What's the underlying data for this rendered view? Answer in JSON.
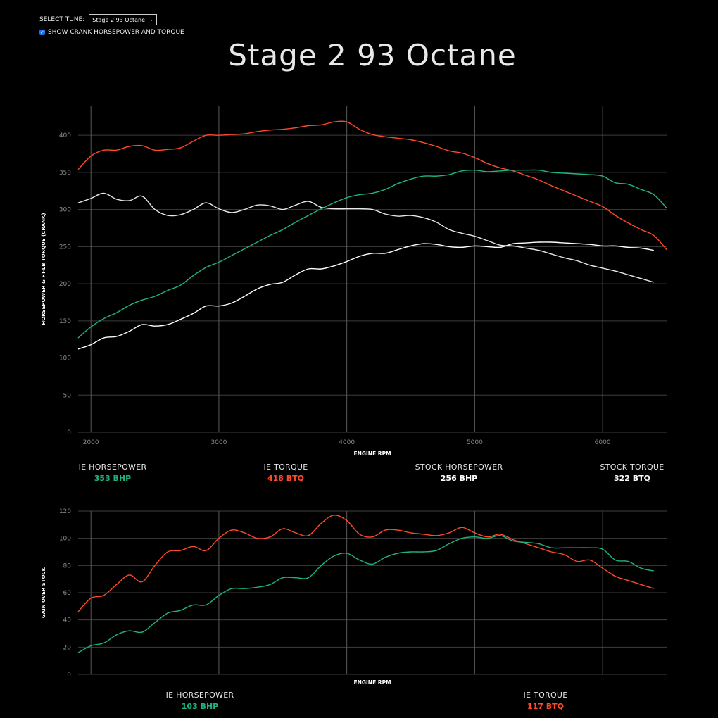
{
  "controls": {
    "select_label": "SELECT TUNE:",
    "selected_tune": "Stage 2 93 Octane",
    "checkbox_label": "SHOW CRANK HORSEPOWER AND TORQUE",
    "checkbox_checked": true
  },
  "title": "Stage 2 93 Octane",
  "main_summary": [
    {
      "label": "IE HORSEPOWER",
      "value": "353 BHP"
    },
    {
      "label": "IE TORQUE",
      "value": "418 BTQ"
    },
    {
      "label": "STOCK HORSEPOWER",
      "value": "256 BHP"
    },
    {
      "label": "STOCK TORQUE",
      "value": "322 BTQ"
    }
  ],
  "gain_summary": [
    {
      "label": "IE HORSEPOWER",
      "value": "103 BHP"
    },
    {
      "label": "IE TORQUE",
      "value": "117 BTQ"
    }
  ],
  "chart_data": [
    {
      "type": "line",
      "xlabel": "ENGINE RPM",
      "ylabel": "HORSEPOWER & FT-LB TORQUE (CRANK)",
      "xlim": [
        1900,
        6500
      ],
      "ylim": [
        0,
        440
      ],
      "xticks": [
        2000,
        3000,
        4000,
        5000,
        6000
      ],
      "yticks": [
        0,
        50,
        100,
        150,
        200,
        250,
        300,
        350,
        400
      ],
      "grid": true,
      "series": [
        {
          "name": "IE TORQUE",
          "color": "#ff4a2a",
          "x": [
            1900,
            2000,
            2100,
            2200,
            2300,
            2400,
            2500,
            2600,
            2700,
            2800,
            2900,
            3000,
            3100,
            3200,
            3300,
            3400,
            3500,
            3600,
            3700,
            3800,
            3900,
            4000,
            4100,
            4200,
            4300,
            4400,
            4500,
            4600,
            4700,
            4800,
            4900,
            5000,
            5100,
            5200,
            5300,
            5400,
            5500,
            5600,
            5700,
            5800,
            5900,
            6000,
            6100,
            6200,
            6300,
            6400,
            6500
          ],
          "y": [
            354,
            372,
            380,
            380,
            385,
            386,
            380,
            381,
            383,
            392,
            400,
            400,
            401,
            402,
            405,
            407,
            408,
            410,
            413,
            414,
            418,
            418,
            408,
            401,
            398,
            396,
            394,
            390,
            385,
            379,
            376,
            370,
            362,
            356,
            352,
            346,
            340,
            332,
            325,
            318,
            311,
            304,
            292,
            282,
            273,
            265,
            246
          ]
        },
        {
          "name": "IE HORSEPOWER",
          "color": "#1fb47f",
          "x": [
            1900,
            2000,
            2100,
            2200,
            2300,
            2400,
            2500,
            2600,
            2700,
            2800,
            2900,
            3000,
            3100,
            3200,
            3300,
            3400,
            3500,
            3600,
            3700,
            3800,
            3900,
            4000,
            4100,
            4200,
            4300,
            4400,
            4500,
            4600,
            4700,
            4800,
            4900,
            5000,
            5100,
            5200,
            5300,
            5400,
            5500,
            5600,
            5700,
            5800,
            5900,
            6000,
            6100,
            6200,
            6300,
            6400,
            6500
          ],
          "y": [
            127,
            142,
            153,
            161,
            171,
            178,
            183,
            191,
            198,
            211,
            222,
            229,
            238,
            247,
            256,
            265,
            273,
            283,
            292,
            301,
            309,
            316,
            320,
            322,
            327,
            335,
            341,
            345,
            345,
            347,
            352,
            353,
            351,
            352,
            353,
            353,
            353,
            350,
            349,
            348,
            347,
            345,
            336,
            334,
            327,
            320,
            302
          ]
        },
        {
          "name": "STOCK TORQUE",
          "color": "#e8e8e8",
          "x": [
            1900,
            2000,
            2100,
            2200,
            2300,
            2400,
            2500,
            2600,
            2700,
            2800,
            2900,
            3000,
            3100,
            3200,
            3300,
            3400,
            3500,
            3600,
            3700,
            3800,
            3900,
            4000,
            4100,
            4200,
            4300,
            4400,
            4500,
            4600,
            4700,
            4800,
            4900,
            5000,
            5100,
            5200,
            5300,
            5400,
            5500,
            5600,
            5700,
            5800,
            5900,
            6000,
            6100,
            6200,
            6300,
            6400
          ],
          "y": [
            309,
            315,
            322,
            314,
            312,
            318,
            300,
            292,
            293,
            300,
            309,
            301,
            296,
            300,
            306,
            305,
            300,
            306,
            311,
            303,
            301,
            301,
            301,
            300,
            294,
            291,
            292,
            289,
            283,
            273,
            268,
            264,
            258,
            252,
            251,
            248,
            245,
            240,
            235,
            231,
            225,
            221,
            217,
            212,
            207,
            202
          ]
        },
        {
          "name": "STOCK HORSEPOWER",
          "color": "#ffffff",
          "x": [
            1900,
            2000,
            2100,
            2200,
            2300,
            2400,
            2500,
            2600,
            2700,
            2800,
            2900,
            3000,
            3100,
            3200,
            3300,
            3400,
            3500,
            3600,
            3700,
            3800,
            3900,
            4000,
            4100,
            4200,
            4300,
            4400,
            4500,
            4600,
            4700,
            4800,
            4900,
            5000,
            5100,
            5200,
            5300,
            5400,
            5500,
            5600,
            5700,
            5800,
            5900,
            6000,
            6100,
            6200,
            6300,
            6400
          ],
          "y": [
            112,
            118,
            127,
            129,
            136,
            145,
            143,
            145,
            152,
            160,
            170,
            170,
            174,
            183,
            193,
            199,
            202,
            212,
            220,
            220,
            224,
            230,
            237,
            241,
            241,
            246,
            251,
            254,
            253,
            250,
            249,
            251,
            250,
            249,
            254,
            255,
            256,
            256,
            255,
            254,
            253,
            251,
            251,
            249,
            248,
            245
          ]
        }
      ]
    },
    {
      "type": "line",
      "xlabel": "ENGINE RPM",
      "ylabel": "GAIN OVER STOCK",
      "xlim": [
        1900,
        6500
      ],
      "ylim": [
        0,
        120
      ],
      "xticks": [],
      "yticks": [
        0,
        20,
        40,
        60,
        80,
        100,
        120
      ],
      "grid": true,
      "series": [
        {
          "name": "IE TORQUE",
          "color": "#ff4a2a",
          "x": [
            1900,
            2000,
            2100,
            2200,
            2300,
            2400,
            2500,
            2600,
            2700,
            2800,
            2900,
            3000,
            3100,
            3200,
            3300,
            3400,
            3500,
            3600,
            3700,
            3800,
            3900,
            4000,
            4100,
            4200,
            4300,
            4400,
            4500,
            4600,
            4700,
            4800,
            4900,
            5000,
            5100,
            5200,
            5300,
            5400,
            5500,
            5600,
            5700,
            5800,
            5900,
            6000,
            6100,
            6200,
            6300,
            6400
          ],
          "y": [
            46,
            56,
            58,
            66,
            73,
            68,
            80,
            90,
            91,
            94,
            91,
            100,
            106,
            104,
            100,
            101,
            107,
            104,
            102,
            111,
            117,
            113,
            103,
            101,
            106,
            106,
            104,
            103,
            102,
            104,
            108,
            104,
            101,
            103,
            99,
            96,
            93,
            90,
            88,
            83,
            84,
            78,
            72,
            69,
            66,
            63
          ]
        },
        {
          "name": "IE HORSEPOWER",
          "color": "#1fb47f",
          "x": [
            1900,
            2000,
            2100,
            2200,
            2300,
            2400,
            2500,
            2600,
            2700,
            2800,
            2900,
            3000,
            3100,
            3200,
            3300,
            3400,
            3500,
            3600,
            3700,
            3800,
            3900,
            4000,
            4100,
            4200,
            4300,
            4400,
            4500,
            4600,
            4700,
            4800,
            4900,
            5000,
            5100,
            5200,
            5300,
            5400,
            5500,
            5600,
            5700,
            5800,
            5900,
            6000,
            6100,
            6200,
            6300,
            6400
          ],
          "y": [
            16,
            21,
            23,
            29,
            32,
            31,
            38,
            45,
            47,
            51,
            51,
            58,
            63,
            63,
            64,
            66,
            71,
            71,
            71,
            80,
            87,
            89,
            84,
            81,
            86,
            89,
            90,
            90,
            91,
            96,
            100,
            101,
            100,
            102,
            98,
            97,
            96,
            93,
            93,
            93,
            93,
            92,
            84,
            83,
            78,
            76
          ]
        }
      ]
    }
  ]
}
